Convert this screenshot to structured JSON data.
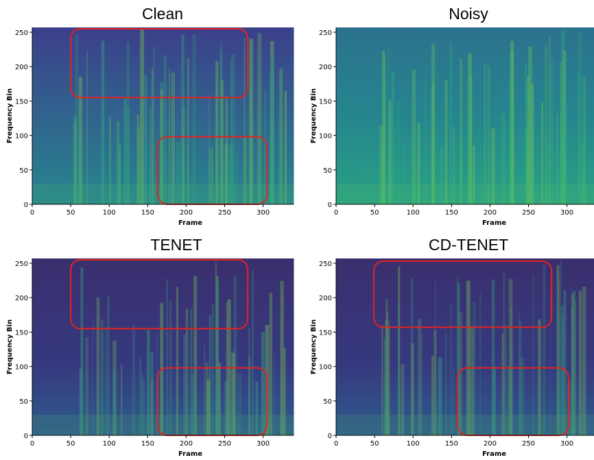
{
  "chart_data": [
    {
      "type": "heatmap",
      "title": "Clean",
      "xlabel": "Frame",
      "ylabel": "Frequency Bin",
      "xlim": [
        0,
        340
      ],
      "ylim": [
        0,
        257
      ],
      "xticks": [
        0,
        50,
        100,
        150,
        200,
        250,
        300
      ],
      "yticks": [
        0,
        50,
        100,
        150,
        200,
        250
      ],
      "region_color": "#e8211c",
      "regions": [
        {
          "xlim": [
            50,
            280
          ],
          "ylim": [
            155,
            255
          ]
        },
        {
          "xlim": [
            163,
            305
          ],
          "ylim": [
            0,
            98
          ]
        }
      ]
    },
    {
      "type": "heatmap",
      "title": "Noisy",
      "xlabel": "Frame",
      "ylabel": "Frequency Bin",
      "xlim": [
        0,
        340
      ],
      "ylim": [
        0,
        257
      ],
      "xticks": [
        0,
        50,
        100,
        150,
        200,
        250,
        300
      ],
      "yticks": [
        0,
        50,
        100,
        150,
        200,
        250
      ],
      "region_color": "#e8211c",
      "regions": []
    },
    {
      "type": "heatmap",
      "title": "TENET",
      "xlabel": "Frame",
      "ylabel": "Frequency Bin",
      "xlim": [
        0,
        340
      ],
      "ylim": [
        0,
        257
      ],
      "xticks": [
        0,
        50,
        100,
        150,
        200,
        250,
        300
      ],
      "yticks": [
        0,
        50,
        100,
        150,
        200,
        250
      ],
      "region_color": "#e8211c",
      "regions": [
        {
          "xlim": [
            50,
            280
          ],
          "ylim": [
            155,
            255
          ]
        },
        {
          "xlim": [
            163,
            305
          ],
          "ylim": [
            0,
            98
          ]
        }
      ]
    },
    {
      "type": "heatmap",
      "title": "CD-TENET",
      "xlabel": "Frame",
      "ylabel": "Frequency Bin",
      "xlim": [
        0,
        340
      ],
      "ylim": [
        0,
        257
      ],
      "xticks": [
        0,
        50,
        100,
        150,
        200,
        250,
        300
      ],
      "yticks": [
        0,
        50,
        100,
        150,
        200,
        250
      ],
      "region_color": "#e8211c",
      "regions": [
        {
          "xlim": [
            49,
            280
          ],
          "ylim": [
            157,
            253
          ]
        },
        {
          "xlim": [
            158,
            302
          ],
          "ylim": [
            0,
            98
          ]
        }
      ]
    }
  ]
}
